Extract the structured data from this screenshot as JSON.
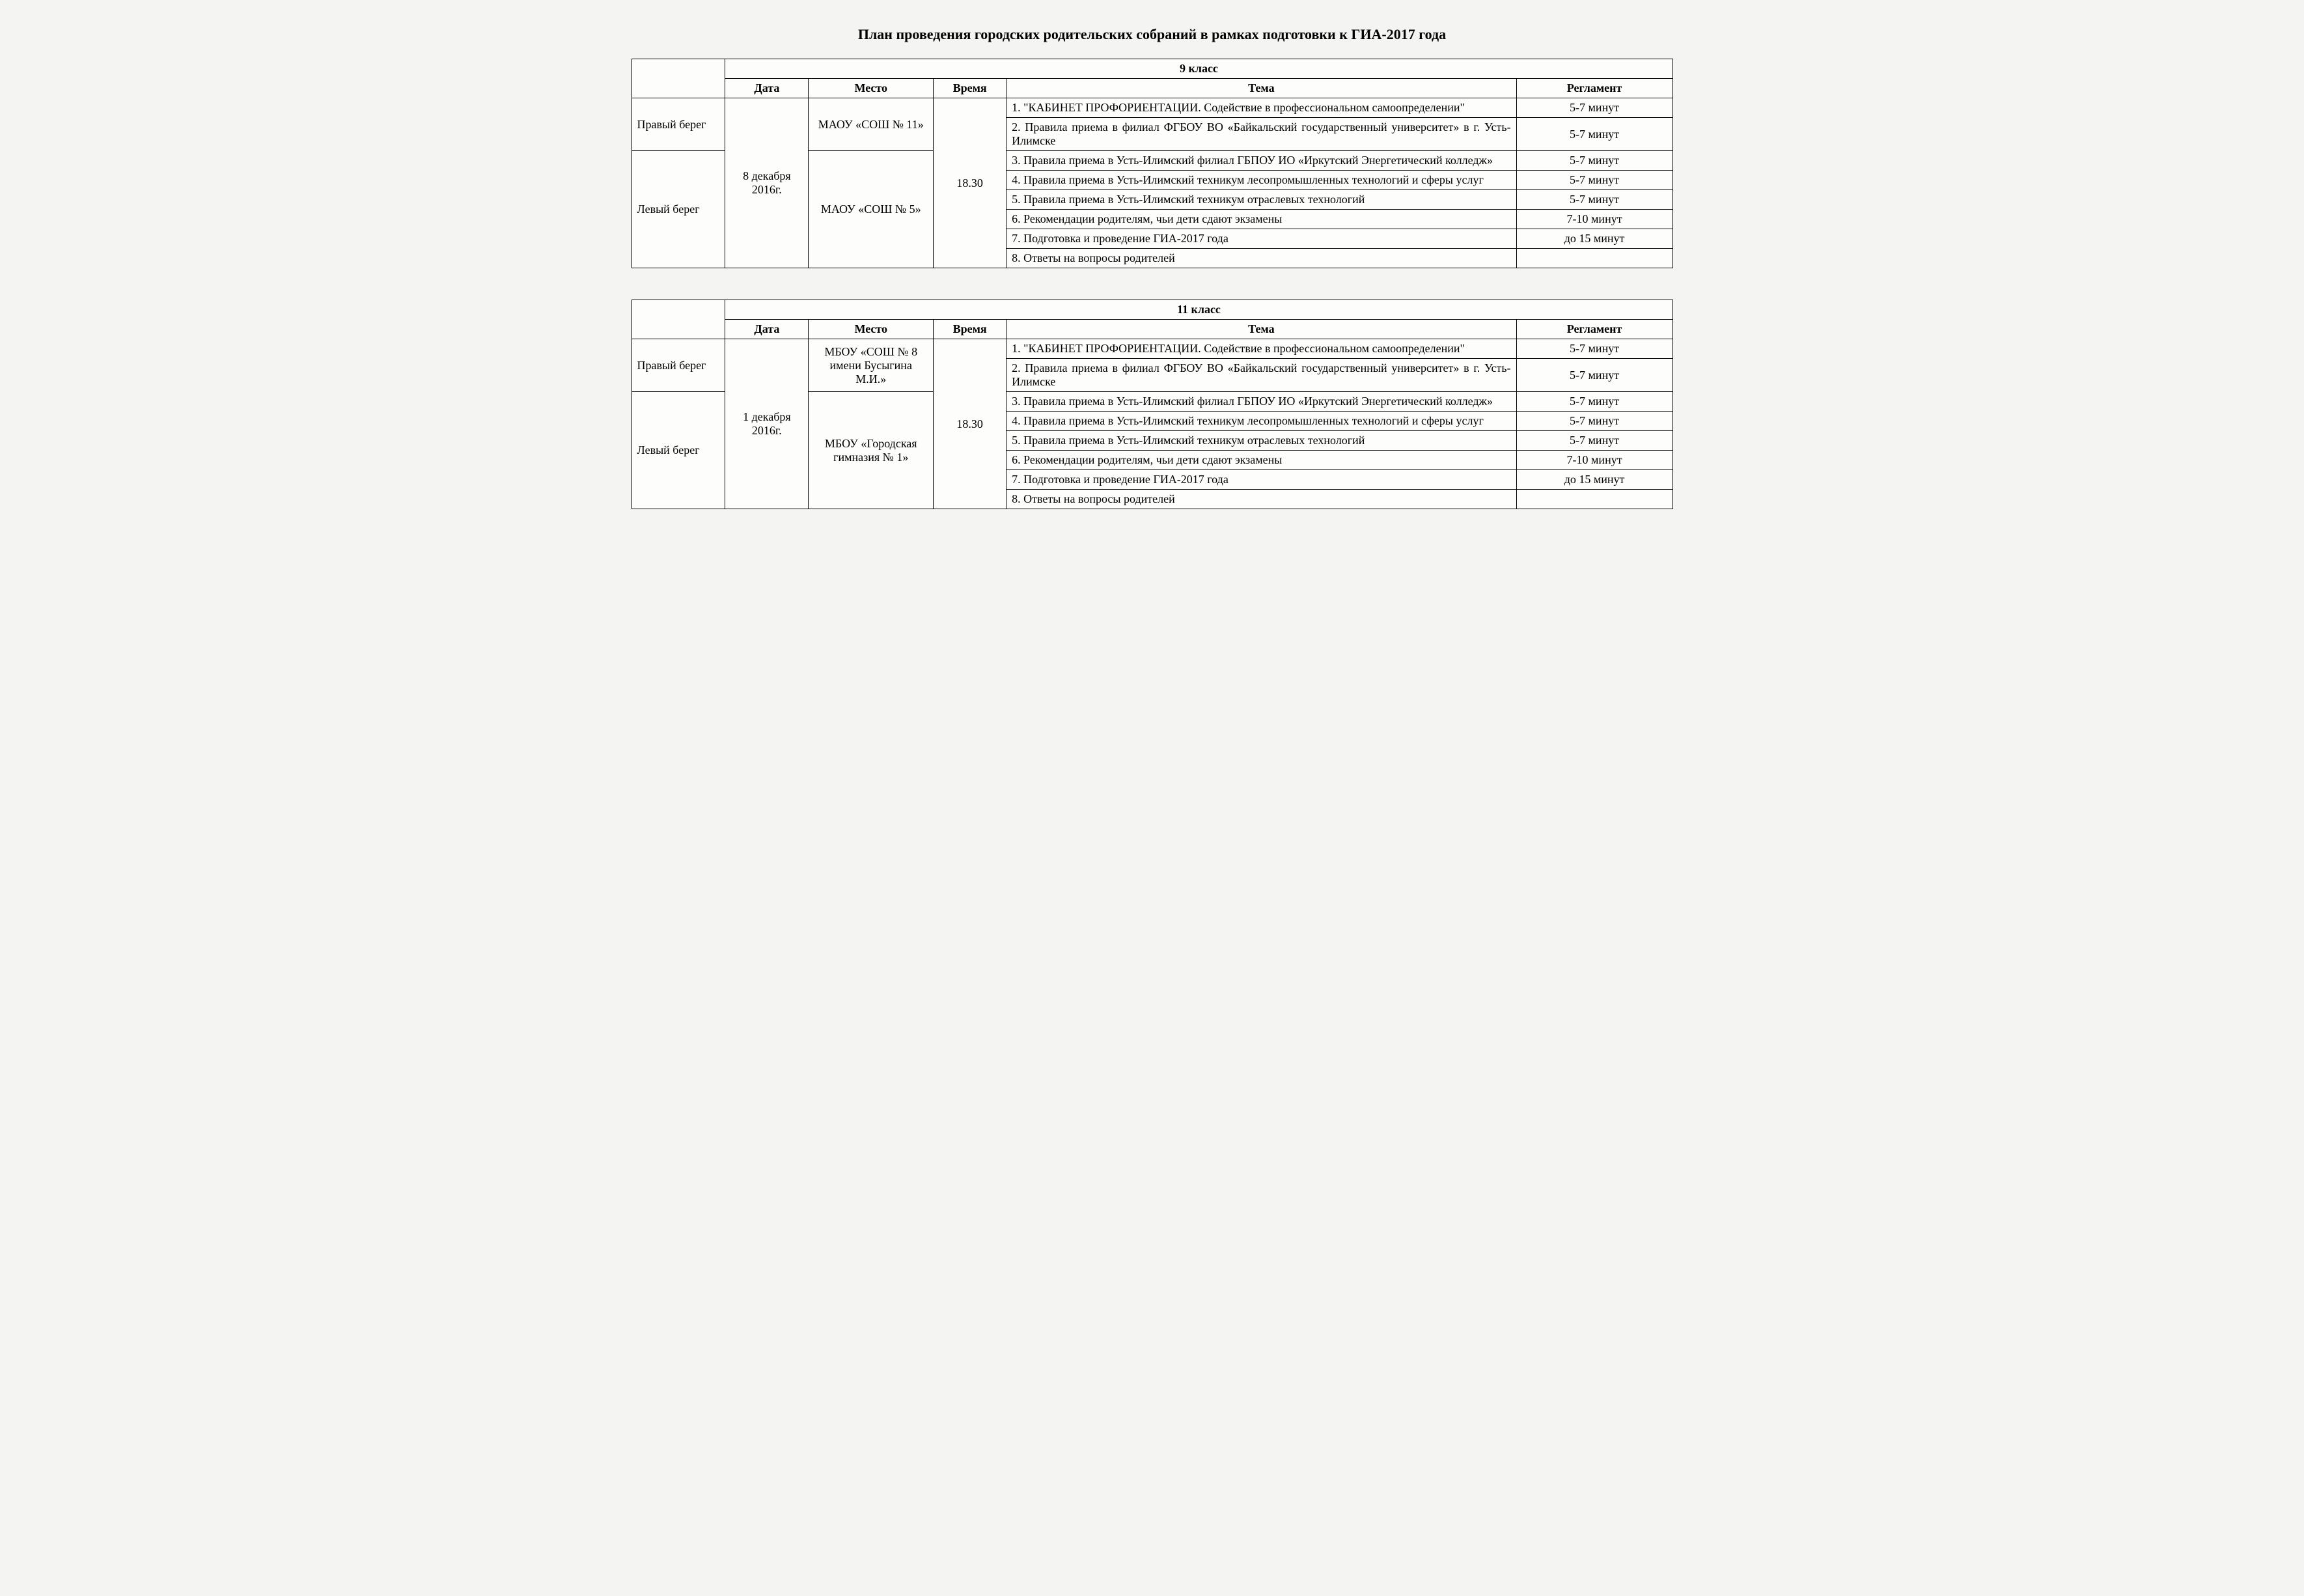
{
  "title": "План проведения городских родительских собраний в рамках подготовки к ГИА-2017 года",
  "headers": {
    "date": "Дата",
    "place": "Место",
    "time": "Время",
    "topic": "Тема",
    "reg": "Регламент"
  },
  "locations": {
    "right": "Правый берег",
    "left": "Левый берег"
  },
  "table9": {
    "class_label": "9 класс",
    "date": "8 декабря 2016г.",
    "time": "18.30",
    "place_right": "МАОУ «СОШ № 11»",
    "place_left": "МАОУ «СОШ № 5»",
    "rows": [
      {
        "topic": "1. \"КАБИНЕТ ПРОФОРИЕНТАЦИИ. Содействие в профессиональном самоопределении\"",
        "reg": "5-7 минут"
      },
      {
        "topic": "2. Правила приема в филиал ФГБОУ ВО «Байкальский государственный университет» в г. Усть-Илимске",
        "reg": "5-7 минут"
      },
      {
        "topic": "3. Правила приема в Усть-Илимский филиал ГБПОУ ИО «Иркутский Энергетический колледж»",
        "reg": "5-7 минут"
      },
      {
        "topic": "4. Правила приема в Усть-Илимский техникум лесопромышленных технологий и сферы услуг",
        "reg": "5-7 минут"
      },
      {
        "topic": "5. Правила приема в Усть-Илимский техникум отраслевых технологий",
        "reg": "5-7 минут"
      },
      {
        "topic": "6. Рекомендации родителям, чьи дети сдают экзамены",
        "reg": "7-10 минут"
      },
      {
        "topic": "7. Подготовка и проведение ГИА-2017 года",
        "reg": "до 15 минут"
      },
      {
        "topic": "8. Ответы на вопросы родителей",
        "reg": ""
      }
    ]
  },
  "table11": {
    "class_label": "11 класс",
    "date": "1 декабря 2016г.",
    "time": "18.30",
    "place_right": "МБОУ «СОШ № 8 имени Бусыгина М.И.»",
    "place_left": "МБОУ «Городская гимназия № 1»",
    "rows": [
      {
        "topic": "1. \"КАБИНЕТ ПРОФОРИЕНТАЦИИ. Содействие в профессиональном самоопределении\"",
        "reg": "5-7 минут"
      },
      {
        "topic": "2. Правила приема в филиал ФГБОУ ВО «Байкальский государственный университет» в г. Усть-Илимске",
        "reg": "5-7 минут"
      },
      {
        "topic": "3. Правила приема в Усть-Илимский филиал ГБПОУ ИО «Иркутский Энергетический колледж»",
        "reg": "5-7 минут"
      },
      {
        "topic": "4. Правила приема в Усть-Илимский техникум лесопромышленных технологий и сферы услуг",
        "reg": "5-7 минут"
      },
      {
        "topic": "5. Правила приема в Усть-Илимский техникум отраслевых технологий",
        "reg": "5-7 минут"
      },
      {
        "topic": "6. Рекомендации родителям, чьи дети сдают экзамены",
        "reg": "7-10 минут"
      },
      {
        "topic": "7. Подготовка и проведение ГИА-2017 года",
        "reg": "до 15 минут"
      },
      {
        "topic": "8. Ответы на вопросы родителей",
        "reg": ""
      }
    ]
  },
  "style": {
    "background_color": "#f4f4f2",
    "table_background": "#fdfdfc",
    "border_color": "#000000",
    "text_color": "#000000",
    "title_fontsize": 22,
    "cell_fontsize": 18,
    "font_family": "Times New Roman"
  }
}
